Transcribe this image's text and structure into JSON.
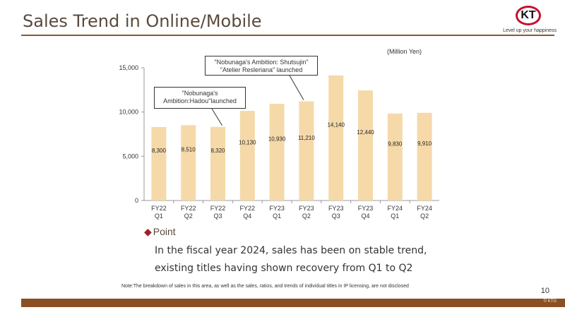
{
  "header": {
    "title": "Sales Trend in Online/Mobile",
    "logo_text": "KT",
    "tagline": "Level up your happiness"
  },
  "chart_data": {
    "type": "bar",
    "unit_label": "(Million Yen)",
    "categories": [
      [
        "FY22",
        "Q1"
      ],
      [
        "FY22",
        "Q2"
      ],
      [
        "FY22",
        "Q3"
      ],
      [
        "FY22",
        "Q4"
      ],
      [
        "FY23",
        "Q1"
      ],
      [
        "FY23",
        "Q2"
      ],
      [
        "FY23",
        "Q3"
      ],
      [
        "FY23",
        "Q4"
      ],
      [
        "FY24",
        "Q1"
      ],
      [
        "FY24",
        "Q2"
      ]
    ],
    "values": [
      8300,
      8510,
      8320,
      10130,
      10930,
      11210,
      14140,
      12440,
      9830,
      9910
    ],
    "data_labels": [
      "8,300",
      "8,510",
      "8,320",
      "10,130",
      "10,930",
      "11,210",
      "14,140",
      "12,440",
      "9,830",
      "9,910"
    ],
    "ylim": [
      0,
      15000
    ],
    "yticks": [
      0,
      5000,
      10000,
      15000
    ],
    "ytick_labels": [
      "0",
      "5,000",
      "10,000",
      "15,000"
    ],
    "bar_color": "#f5d9a8",
    "grid": false,
    "annotations": [
      {
        "lines": [
          "\"Nobunaga's",
          "Ambition:Hadou\"launched"
        ],
        "category_index": 2
      },
      {
        "lines": [
          "\"Nobunaga's Ambition: Shutsujin\"",
          "\"Atelier Resleriana\" launched"
        ],
        "category_index": 5
      }
    ]
  },
  "point": {
    "heading": "Point",
    "lines": [
      "In the fiscal year 2024, sales has been on stable trend,",
      "existing titles having shown recovery from Q1 to Q2"
    ]
  },
  "note": "Note:The breakdown of sales in this area, as well as the sales, ratios, and trends of individual titles in IP licensing, are not disclosed",
  "page_number": "10",
  "copyright": "© KTG"
}
